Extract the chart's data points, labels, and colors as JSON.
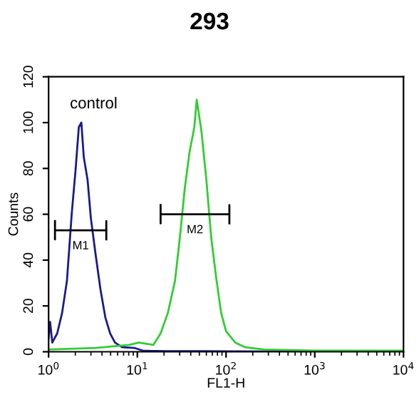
{
  "chart_data": {
    "type": "line",
    "title": "293",
    "xlabel": "FL1-H",
    "ylabel": "Counts",
    "log": "x",
    "xlim": [
      1,
      10000
    ],
    "ylim": [
      0,
      120
    ],
    "xticks": [
      {
        "value": 1,
        "label": "10$^{0}$"
      },
      {
        "value": 10,
        "label": "10$^{1}$"
      },
      {
        "value": 100,
        "label": "10$^{2}$"
      },
      {
        "value": 1000,
        "label": "10$^{3}$"
      },
      {
        "value": 10000,
        "label": "10$^{4}$"
      }
    ],
    "yticks": [
      0,
      20,
      40,
      60,
      80,
      100,
      120
    ],
    "grid": false,
    "legend": false,
    "series": [
      {
        "color": "#1a1a8c",
        "x": [
          1.0,
          1.04,
          1.1,
          1.25,
          1.42,
          1.61,
          1.82,
          2.01,
          2.19,
          2.34,
          2.49,
          2.75,
          3.0,
          3.4,
          3.85,
          4.36,
          4.94,
          5.6,
          6.75,
          9.2,
          11.8,
          20,
          50,
          100,
          1000,
          10000
        ],
        "values": [
          6,
          13,
          4,
          8,
          17,
          31,
          60,
          79,
          98,
          100,
          85,
          75,
          58,
          42,
          27,
          15,
          8,
          4,
          2,
          1.7,
          0.4,
          0.3,
          0.3,
          0.2,
          0,
          0
        ]
      },
      {
        "color": "#33cc33",
        "x": [
          1.0,
          3.4,
          8.1,
          10.4,
          15.2,
          18.3,
          22.1,
          26.6,
          30.2,
          34.2,
          38.7,
          43.9,
          46.7,
          52.9,
          60,
          68,
          77,
          88,
          100,
          127,
          163,
          268,
          1000,
          10000
        ],
        "values": [
          1,
          1.7,
          3,
          4,
          3,
          8,
          17,
          31,
          50,
          71,
          87,
          98,
          110,
          96,
          75,
          50,
          33,
          17,
          9,
          4,
          2,
          1,
          0.5,
          0.5
        ]
      },
      {
        "color": "#000000",
        "x": [
          1.18,
          1.18,
          1.18,
          4.47,
          4.47,
          4.47
        ],
        "values": [
          57,
          49,
          53,
          53,
          57,
          49
        ]
      },
      {
        "color": "#000000",
        "x": [
          18.3,
          18.3,
          18.3,
          109,
          109,
          109
        ],
        "values": [
          64,
          56,
          60,
          60,
          64,
          56
        ]
      }
    ],
    "annotations": [
      "control",
      "M1",
      "M2"
    ]
  }
}
